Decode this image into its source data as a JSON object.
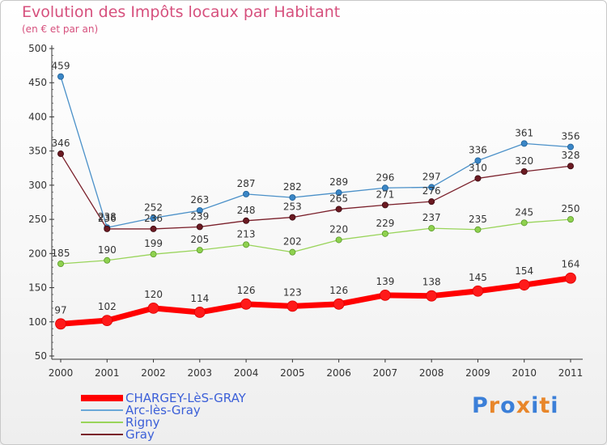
{
  "header": {
    "title": "Evolution des Impôts locaux par Habitant",
    "subtitle": "(en € et par an)"
  },
  "chart_data": {
    "type": "line",
    "title": "Evolution des Impôts locaux par Habitant",
    "subtitle": "(en € et par an)",
    "xlabel": "",
    "ylabel": "",
    "categories": [
      "2000",
      "2001",
      "2002",
      "2003",
      "2004",
      "2005",
      "2006",
      "2007",
      "2008",
      "2009",
      "2010",
      "2011"
    ],
    "ylim": [
      50,
      500
    ],
    "yticks": [
      50,
      100,
      150,
      200,
      250,
      300,
      350,
      400,
      450,
      500
    ],
    "grid": false,
    "legend_position": "bottom-left",
    "series": [
      {
        "name": "CHARGEY-LèS-GRAY",
        "color": "#ff0000",
        "values": [
          97,
          102,
          120,
          114,
          126,
          123,
          126,
          139,
          138,
          145,
          154,
          164
        ]
      },
      {
        "name": "Arc-lès-Gray",
        "color": "#4a90c8",
        "values": [
          459,
          238,
          252,
          263,
          287,
          282,
          289,
          296,
          297,
          336,
          361,
          356
        ]
      },
      {
        "name": "Rigny",
        "color": "#99d45a",
        "values": [
          185,
          190,
          199,
          205,
          213,
          202,
          220,
          229,
          237,
          235,
          245,
          250
        ]
      },
      {
        "name": "Gray",
        "color": "#7a1f2a",
        "values": [
          346,
          236,
          236,
          239,
          248,
          253,
          265,
          271,
          276,
          310,
          320,
          328
        ]
      }
    ]
  },
  "legend": {
    "items": [
      {
        "label": "CHARGEY-LèS-GRAY",
        "color": "#ff0000"
      },
      {
        "label": "Arc-lès-Gray",
        "color": "#6aa8d8"
      },
      {
        "label": "Rigny",
        "color": "#99d45a"
      },
      {
        "label": "Gray",
        "color": "#7a1f2a"
      }
    ]
  },
  "logo": {
    "text": "Proxiti",
    "letter_colors": [
      "#3b7fd8",
      "#e8862a",
      "#3b7fd8",
      "#e8862a",
      "#3b7fd8",
      "#e8862a",
      "#3b7fd8"
    ]
  }
}
